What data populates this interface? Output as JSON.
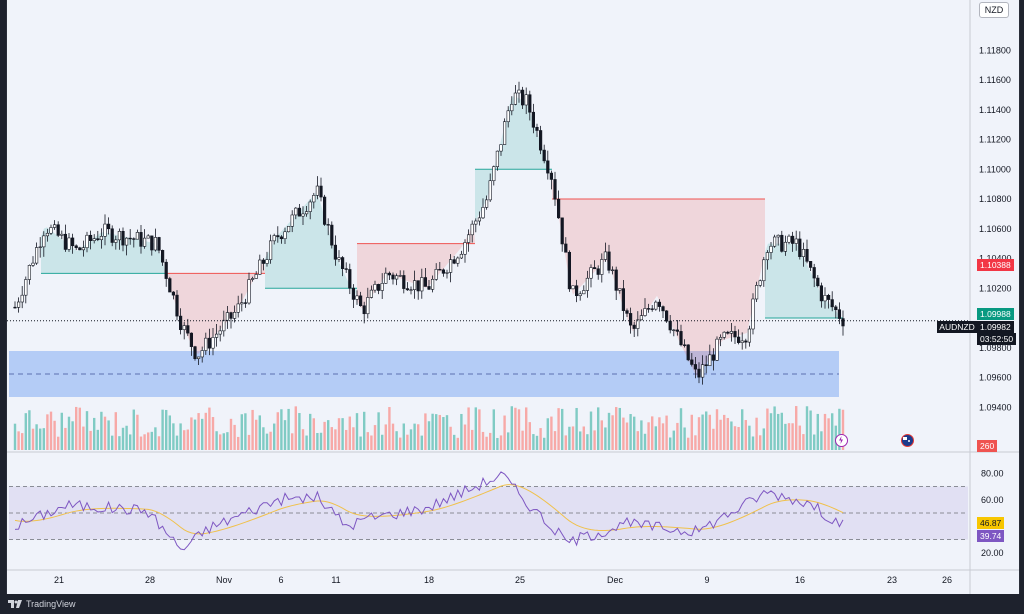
{
  "currency": "NZD",
  "symbol": "AUDNZD",
  "price_axis_labels": [
    "1.11800",
    "1.11600",
    "1.11400",
    "1.11200",
    "1.11000",
    "1.10800",
    "1.10600",
    "1.10400",
    "1.10200",
    "1.09800",
    "1.09600",
    "1.09400"
  ],
  "price_range": [
    1.0917,
    1.1197
  ],
  "rsi_axis_labels": [
    "80.00",
    "60.00",
    "20.00"
  ],
  "rsi_levels": {
    "upper": 70,
    "middle": 50,
    "lower": 30
  },
  "tags": {
    "red_level": "1.10388",
    "green_level": "1.09988",
    "last_price": "1.09982",
    "countdown": "03:52:50",
    "volume": "260",
    "rsi_ma": "46.87",
    "rsi": "39.74"
  },
  "time_labels": [
    "21",
    "28",
    "Nov",
    "6",
    "11",
    "18",
    "25",
    "Dec",
    "9",
    "16",
    "23",
    "26"
  ],
  "brand": "TradingView",
  "colors": {
    "up": "#26a69a",
    "down": "#ef5350",
    "candle": "#131722",
    "zone": "#a9c4f5",
    "rsi": "#7e57c2",
    "rsi_ma": "#f0c14b",
    "last_price_bg": "#131722",
    "red_tag": "#f23645",
    "green_tag": "#089981",
    "rsi_ma_tag": "#f7c600",
    "rsi_tag": "#7e57c2"
  },
  "icons": [
    "lightning-icon",
    "flag-icon",
    "tradingview-logo-icon"
  ]
}
